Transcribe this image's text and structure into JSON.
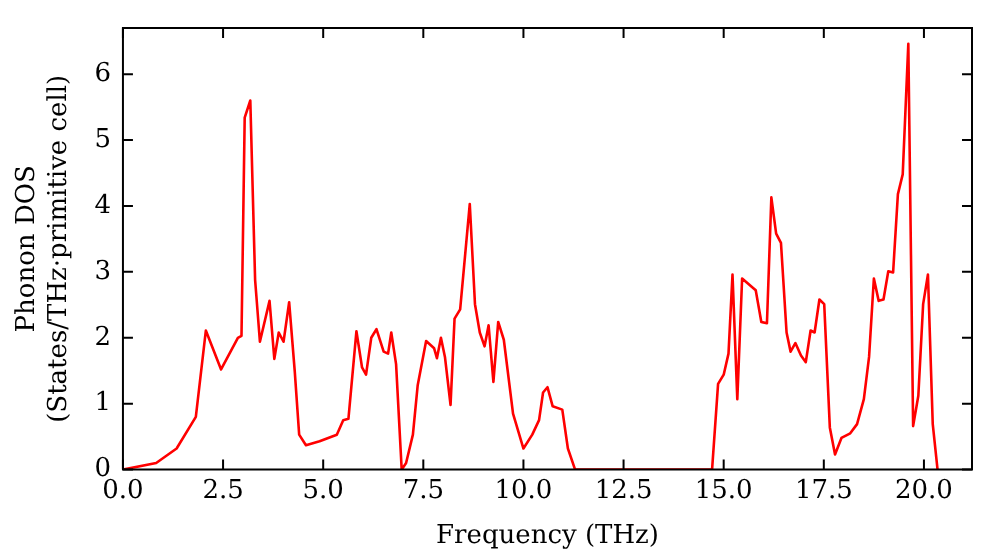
{
  "chart_data": {
    "type": "line",
    "xlabel": "Frequency (THz)",
    "ylabel": "Phonon DOS\n(States/THz·primitive cell)",
    "xlim": [
      0,
      21.2
    ],
    "ylim": [
      0,
      6.7
    ],
    "xticks": [
      {
        "value": 0,
        "label": "0.0"
      },
      {
        "value": 2.5,
        "label": "2.5"
      },
      {
        "value": 5,
        "label": "5.0"
      },
      {
        "value": 7.5,
        "label": "7.5"
      },
      {
        "value": 10,
        "label": "10.0"
      },
      {
        "value": 12.5,
        "label": "12.5"
      },
      {
        "value": 15,
        "label": "15.0"
      },
      {
        "value": 17.5,
        "label": "17.5"
      },
      {
        "value": 20,
        "label": "20.0"
      }
    ],
    "yticks": [
      0,
      1,
      2,
      3,
      4,
      5,
      6
    ],
    "grid": false,
    "legend": false,
    "marker": "none",
    "line_style": "solid",
    "series": [
      {
        "color": "#ff0000",
        "x": [
          0,
          0.83,
          1.34,
          1.82,
          2.07,
          2.45,
          2.87,
          2.96,
          3.04,
          3.18,
          3.3,
          3.42,
          3.66,
          3.78,
          3.89,
          4.01,
          4.15,
          4.29,
          4.4,
          4.57,
          4.91,
          5.34,
          5.5,
          5.63,
          5.83,
          5.97,
          6.07,
          6.2,
          6.33,
          6.51,
          6.62,
          6.7,
          6.82,
          6.96,
          7.07,
          7.24,
          7.36,
          7.57,
          7.77,
          7.84,
          7.94,
          8.04,
          8.18,
          8.28,
          8.42,
          8.66,
          8.79,
          8.91,
          9.03,
          9.13,
          9.25,
          9.37,
          9.51,
          9.74,
          10,
          10.22,
          10.39,
          10.49,
          10.6,
          10.73,
          10.97,
          11.11,
          11.29,
          14.71,
          14.86,
          15,
          15.12,
          15.22,
          15.34,
          15.46,
          15.8,
          15.94,
          16.08,
          16.19,
          16.31,
          16.43,
          16.57,
          16.67,
          16.79,
          16.93,
          17.05,
          17.17,
          17.27,
          17.39,
          17.51,
          17.65,
          17.78,
          17.94,
          18.16,
          18.33,
          18.5,
          18.63,
          18.75,
          18.87,
          18.99,
          19.11,
          19.23,
          19.35,
          19.47,
          19.61,
          19.73,
          19.86,
          19.98,
          20.1,
          20.22,
          20.34
        ],
        "values": [
          0,
          0.1,
          0.32,
          0.8,
          2.11,
          1.52,
          2,
          2.03,
          5.34,
          5.6,
          2.88,
          1.94,
          2.56,
          1.68,
          2.08,
          1.94,
          2.54,
          1.49,
          0.53,
          0.37,
          0.43,
          0.53,
          0.75,
          0.77,
          2.1,
          1.55,
          1.44,
          2,
          2.13,
          1.79,
          1.76,
          2.08,
          1.6,
          0,
          0.1,
          0.53,
          1.28,
          1.95,
          1.84,
          1.69,
          2,
          1.71,
          0.98,
          2.29,
          2.43,
          4.03,
          2.51,
          2.08,
          1.87,
          2.19,
          1.33,
          2.24,
          1.97,
          0.85,
          0.32,
          0.53,
          0.75,
          1.17,
          1.25,
          0.96,
          0.91,
          0.32,
          0,
          0,
          1.3,
          1.44,
          1.76,
          2.96,
          1.07,
          2.9,
          2.72,
          2.24,
          2.22,
          4.13,
          3.58,
          3.44,
          2.08,
          1.79,
          1.92,
          1.73,
          1.63,
          2.11,
          2.08,
          2.58,
          2.51,
          0.64,
          0.23,
          0.48,
          0.55,
          0.69,
          1.07,
          1.71,
          2.9,
          2.56,
          2.58,
          3.01,
          2.99,
          4.18,
          4.48,
          6.46,
          0.66,
          1.12,
          2.51,
          2.96,
          0.69,
          0
        ]
      }
    ]
  }
}
